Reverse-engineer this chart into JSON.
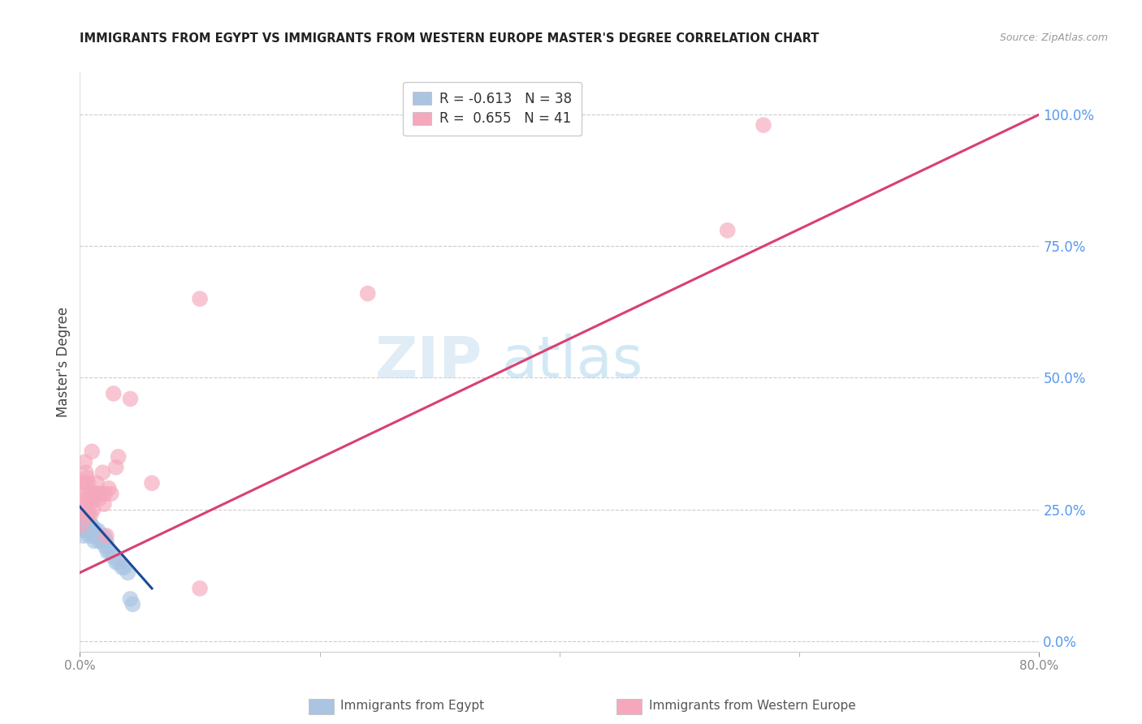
{
  "title": "IMMIGRANTS FROM EGYPT VS IMMIGRANTS FROM WESTERN EUROPE MASTER'S DEGREE CORRELATION CHART",
  "source": "Source: ZipAtlas.com",
  "ylabel": "Master's Degree",
  "ytick_labels": [
    "0.0%",
    "25.0%",
    "50.0%",
    "75.0%",
    "100.0%"
  ],
  "ytick_values": [
    0.0,
    25.0,
    50.0,
    75.0,
    100.0
  ],
  "xlim": [
    0.0,
    80.0
  ],
  "ylim": [
    -2.0,
    108.0
  ],
  "legend_egypt_r": "-0.613",
  "legend_egypt_n": "38",
  "legend_western_r": "0.655",
  "legend_western_n": "41",
  "egypt_color": "#aac4e2",
  "western_color": "#f5a8bc",
  "egypt_line_color": "#1a4a9a",
  "western_line_color": "#d94070",
  "egypt_scatter": [
    [
      0.2,
      22
    ],
    [
      0.3,
      21
    ],
    [
      0.3,
      20
    ],
    [
      0.4,
      23
    ],
    [
      0.5,
      23
    ],
    [
      0.5,
      21
    ],
    [
      0.5,
      22
    ],
    [
      0.6,
      21
    ],
    [
      0.7,
      24
    ],
    [
      0.7,
      21
    ],
    [
      0.8,
      22
    ],
    [
      0.8,
      20
    ],
    [
      0.9,
      21
    ],
    [
      0.9,
      22
    ],
    [
      1.0,
      21
    ],
    [
      1.0,
      22
    ],
    [
      1.1,
      21
    ],
    [
      1.2,
      20
    ],
    [
      1.2,
      19
    ],
    [
      1.3,
      21
    ],
    [
      1.4,
      20
    ],
    [
      1.5,
      21
    ],
    [
      1.6,
      19
    ],
    [
      1.7,
      20
    ],
    [
      1.8,
      19
    ],
    [
      2.0,
      20
    ],
    [
      2.1,
      18
    ],
    [
      2.2,
      19
    ],
    [
      2.3,
      17
    ],
    [
      2.5,
      17
    ],
    [
      2.8,
      16
    ],
    [
      3.0,
      15
    ],
    [
      3.2,
      15
    ],
    [
      3.5,
      14
    ],
    [
      3.7,
      14
    ],
    [
      4.0,
      13
    ],
    [
      4.2,
      8
    ],
    [
      4.4,
      7
    ]
  ],
  "western_scatter": [
    [
      0.1,
      22
    ],
    [
      0.2,
      30
    ],
    [
      0.3,
      27
    ],
    [
      0.3,
      25
    ],
    [
      0.4,
      34
    ],
    [
      0.4,
      28
    ],
    [
      0.5,
      32
    ],
    [
      0.5,
      25
    ],
    [
      0.5,
      30
    ],
    [
      0.6,
      24
    ],
    [
      0.6,
      31
    ],
    [
      0.7,
      27
    ],
    [
      0.7,
      30
    ],
    [
      0.8,
      26
    ],
    [
      0.8,
      28
    ],
    [
      0.9,
      24
    ],
    [
      1.0,
      27
    ],
    [
      1.0,
      36
    ],
    [
      1.1,
      25
    ],
    [
      1.2,
      27
    ],
    [
      1.3,
      28
    ],
    [
      1.4,
      30
    ],
    [
      1.5,
      28
    ],
    [
      1.6,
      27
    ],
    [
      1.8,
      28
    ],
    [
      1.9,
      32
    ],
    [
      2.0,
      26
    ],
    [
      2.1,
      28
    ],
    [
      2.2,
      20
    ],
    [
      2.4,
      29
    ],
    [
      2.6,
      28
    ],
    [
      2.8,
      47
    ],
    [
      3.0,
      33
    ],
    [
      3.2,
      35
    ],
    [
      4.2,
      46
    ],
    [
      6.0,
      30
    ],
    [
      10.0,
      65
    ],
    [
      10.0,
      10
    ],
    [
      24.0,
      66
    ],
    [
      54.0,
      78
    ],
    [
      57.0,
      98
    ]
  ],
  "egypt_line_x": [
    0.0,
    6.0
  ],
  "egypt_line_y": [
    25.5,
    10.0
  ],
  "western_line_x": [
    0.0,
    80.0
  ],
  "western_line_y": [
    13.0,
    100.0
  ],
  "watermark_zip": "ZIP",
  "watermark_atlas": "atlas",
  "background_color": "#ffffff",
  "grid_color": "#cccccc"
}
